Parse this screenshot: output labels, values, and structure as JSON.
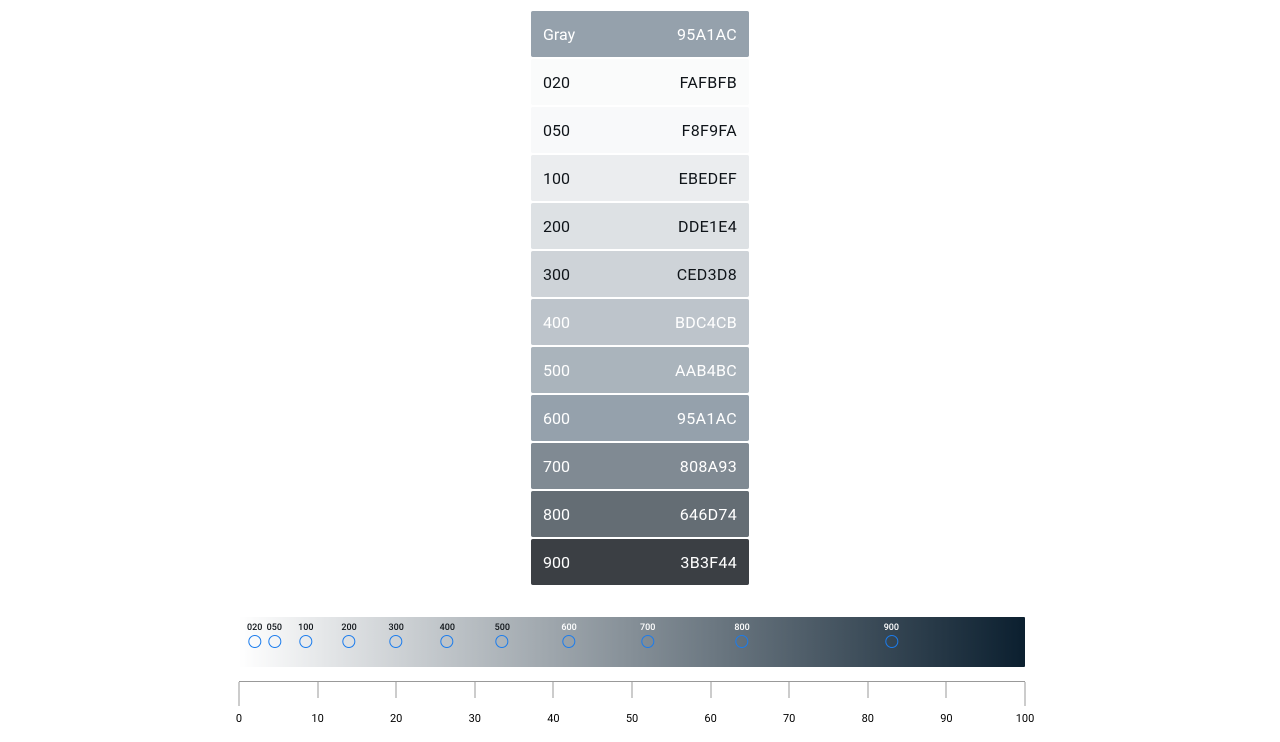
{
  "palette": {
    "header": {
      "label": "Gray",
      "hex": "95A1AC",
      "bg": "#95A1AC",
      "fg": "#ffffff"
    },
    "rows": [
      {
        "label": "020",
        "hex": "FAFBFB",
        "bg": "#FAFBFB",
        "fg": "#0f1419"
      },
      {
        "label": "050",
        "hex": "F8F9FA",
        "bg": "#F8F9FA",
        "fg": "#0f1419"
      },
      {
        "label": "100",
        "hex": "EBEDEF",
        "bg": "#EBEDEF",
        "fg": "#0f1419"
      },
      {
        "label": "200",
        "hex": "DDE1E4",
        "bg": "#DDE1E4",
        "fg": "#0f1419"
      },
      {
        "label": "300",
        "hex": "CED3D8",
        "bg": "#CED3D8",
        "fg": "#0f1419"
      },
      {
        "label": "400",
        "hex": "BDC4CB",
        "bg": "#BDC4CB",
        "fg": "#ffffff"
      },
      {
        "label": "500",
        "hex": "AAB4BC",
        "bg": "#AAB4BC",
        "fg": "#ffffff"
      },
      {
        "label": "600",
        "hex": "95A1AC",
        "bg": "#95A1AC",
        "fg": "#ffffff"
      },
      {
        "label": "700",
        "hex": "808A93",
        "bg": "#808A93",
        "fg": "#ffffff"
      },
      {
        "label": "800",
        "hex": "646D74",
        "bg": "#646D74",
        "fg": "#ffffff"
      },
      {
        "label": "900",
        "hex": "3B3F44",
        "bg": "#3B3F44",
        "fg": "#ffffff"
      }
    ]
  },
  "gradient": {
    "start_color": "#ffffff",
    "end_color": "#0b1f2f",
    "marker_outline": "#1b7ced",
    "markers": [
      {
        "label": "020",
        "pos": 2.0,
        "label_color": "#0f1419"
      },
      {
        "label": "050",
        "pos": 4.5,
        "label_color": "#0f1419"
      },
      {
        "label": "100",
        "pos": 8.5,
        "label_color": "#0f1419"
      },
      {
        "label": "200",
        "pos": 14.0,
        "label_color": "#0f1419"
      },
      {
        "label": "300",
        "pos": 20.0,
        "label_color": "#0f1419"
      },
      {
        "label": "400",
        "pos": 26.5,
        "label_color": "#0f1419"
      },
      {
        "label": "500",
        "pos": 33.5,
        "label_color": "#0f1419"
      },
      {
        "label": "600",
        "pos": 42.0,
        "label_color": "#ffffff"
      },
      {
        "label": "700",
        "pos": 52.0,
        "label_color": "#ffffff"
      },
      {
        "label": "800",
        "pos": 64.0,
        "label_color": "#ffffff"
      },
      {
        "label": "900",
        "pos": 83.0,
        "label_color": "#ffffff"
      }
    ]
  },
  "ruler": {
    "min": 0,
    "max": 100,
    "ticks": [
      0,
      10,
      20,
      30,
      40,
      50,
      60,
      70,
      80,
      90,
      100
    ]
  }
}
